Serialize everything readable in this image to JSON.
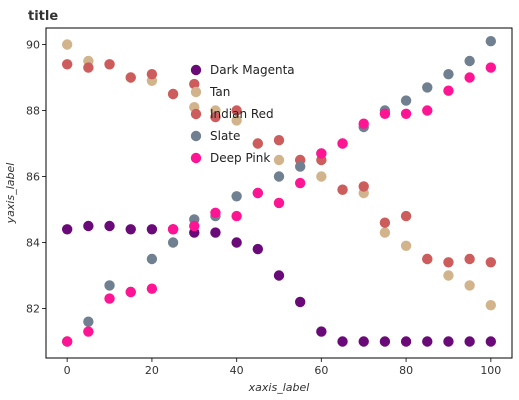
{
  "chart_data": {
    "type": "scatter",
    "title": "title",
    "xlabel": "xaxis_label",
    "ylabel": "yaxis_label",
    "xlim": [
      -5,
      105
    ],
    "ylim": [
      80.5,
      90.5
    ],
    "x_ticks": [
      0,
      20,
      40,
      60,
      80,
      100
    ],
    "y_ticks": [
      82,
      84,
      86,
      88,
      90
    ],
    "legend_position": "top-center",
    "x": [
      0,
      5,
      10,
      15,
      20,
      25,
      30,
      35,
      40,
      45,
      50,
      55,
      60,
      65,
      70,
      75,
      80,
      85,
      90,
      95,
      100
    ],
    "series": [
      {
        "name": "Dark Magenta",
        "color": "#6a0a78",
        "values": [
          84.4,
          84.5,
          84.5,
          84.4,
          84.4,
          84.4,
          84.3,
          84.3,
          84.0,
          83.8,
          83.0,
          82.2,
          81.3,
          81.0,
          81.0,
          81.0,
          81.0,
          81.0,
          81.0,
          81.0,
          81.0
        ]
      },
      {
        "name": "Tan",
        "color": "#d2b48c",
        "values": [
          90.0,
          89.5,
          89.4,
          89.0,
          88.9,
          88.5,
          88.1,
          88.0,
          87.7,
          87.0,
          86.5,
          86.5,
          86.0,
          85.6,
          85.5,
          84.3,
          83.9,
          83.5,
          83.0,
          82.7,
          82.1
        ]
      },
      {
        "name": "Indian Red",
        "color": "#cd5c5c",
        "values": [
          89.4,
          89.3,
          89.4,
          89.0,
          89.1,
          88.5,
          88.8,
          87.8,
          88.0,
          87.0,
          87.1,
          86.5,
          86.5,
          85.6,
          85.7,
          84.6,
          84.8,
          83.5,
          83.4,
          83.5,
          83.4
        ]
      },
      {
        "name": "Slate",
        "color": "#708090",
        "values": [
          81.0,
          81.6,
          82.7,
          82.5,
          83.5,
          84.0,
          84.7,
          84.8,
          85.4,
          85.5,
          86.0,
          86.3,
          86.7,
          87.0,
          87.5,
          88.0,
          88.3,
          88.7,
          89.1,
          89.5,
          90.1
        ]
      },
      {
        "name": "Deep Pink",
        "color": "#ff1493",
        "values": [
          81.0,
          81.3,
          82.3,
          82.5,
          82.6,
          84.4,
          84.5,
          84.9,
          84.8,
          85.5,
          85.2,
          85.8,
          86.7,
          87.0,
          87.6,
          87.9,
          87.9,
          88.0,
          88.6,
          89.0,
          89.3
        ]
      }
    ]
  }
}
